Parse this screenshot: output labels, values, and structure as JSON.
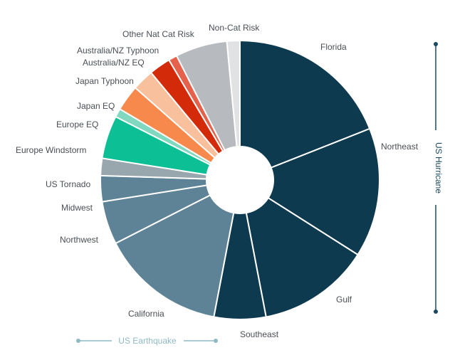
{
  "chart_data": {
    "type": "pie",
    "donut": true,
    "title": "",
    "slices": [
      {
        "label": "Florida",
        "value": 19.0,
        "color": "#0d3a4f"
      },
      {
        "label": "Northeast",
        "value": 15.0,
        "color": "#0d3a4f"
      },
      {
        "label": "Gulf",
        "value": 13.0,
        "color": "#0d3a4f"
      },
      {
        "label": "Southeast",
        "value": 6.0,
        "color": "#0d3a4f"
      },
      {
        "label": "California",
        "value": 14.5,
        "color": "#5f8396"
      },
      {
        "label": "Northwest",
        "value": 5.0,
        "color": "#5f8396"
      },
      {
        "label": "Midwest",
        "value": 3.0,
        "color": "#5f8396"
      },
      {
        "label": "US Tornado",
        "value": 2.0,
        "color": "#98a6ad"
      },
      {
        "label": "Europe Windstorm",
        "value": 5.0,
        "color": "#0dbf95"
      },
      {
        "label": "Europe EQ",
        "value": 1.0,
        "color": "#7fd8bf"
      },
      {
        "label": "Japan EQ",
        "value": 3.0,
        "color": "#f6894b"
      },
      {
        "label": "Japan Typhoon",
        "value": 2.5,
        "color": "#f8c09d"
      },
      {
        "label": "Australia/NZ EQ",
        "value": 2.5,
        "color": "#d32a0a"
      },
      {
        "label": "Australia/NZ Typhoon",
        "value": 1.0,
        "color": "#e5614b"
      },
      {
        "label": "Other Nat Cat Risk",
        "value": 6.0,
        "color": "#b7bbbf"
      },
      {
        "label": "Non-Cat Risk",
        "value": 1.5,
        "color": "#e0e2e4"
      }
    ],
    "groups": [
      {
        "label": "US Hurricane",
        "members": [
          "Florida",
          "Northeast",
          "Gulf",
          "Southeast"
        ],
        "color": "#1b4a60"
      },
      {
        "label": "US Earthquake",
        "members": [
          "California",
          "Northwest",
          "Midwest"
        ],
        "color": "#8fbac4"
      }
    ],
    "legend": "none"
  }
}
